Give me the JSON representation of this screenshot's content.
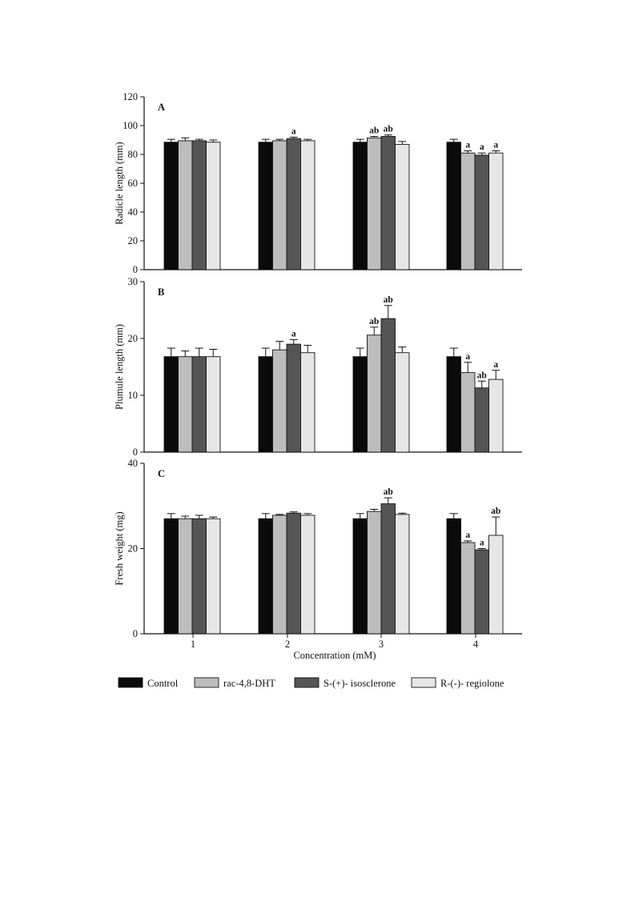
{
  "chart_data": [
    {
      "type": "bar",
      "panel_label": "A",
      "ylabel": "Radicle length  (mm)",
      "ylim": [
        0,
        120
      ],
      "yticks": [
        0,
        20,
        40,
        60,
        80,
        100,
        120
      ],
      "categories": [
        "1",
        "2",
        "3",
        "4"
      ],
      "series": [
        {
          "name": "Control",
          "values": [
            88.5,
            88.5,
            88.5,
            88.5
          ],
          "errors": [
            2,
            2,
            2,
            2
          ],
          "labels": [
            "",
            "",
            "",
            ""
          ]
        },
        {
          "name": "rac-4,8-DHT",
          "values": [
            89.5,
            89.5,
            91.5,
            81
          ],
          "errors": [
            2,
            1,
            1,
            1.5
          ],
          "labels": [
            "",
            "",
            "ab",
            "a"
          ]
        },
        {
          "name": "S-(+)- isosclerone",
          "values": [
            89.5,
            91,
            92.5,
            79.5
          ],
          "errors": [
            1,
            1,
            1,
            1.5
          ],
          "labels": [
            "",
            "a",
            "ab",
            "a"
          ]
        },
        {
          "name": "R-(-)- regiolone",
          "values": [
            88.5,
            89.5,
            87,
            81
          ],
          "errors": [
            1.5,
            1,
            2,
            1.5
          ],
          "labels": [
            "",
            "",
            "",
            "a"
          ]
        }
      ]
    },
    {
      "type": "bar",
      "panel_label": "B",
      "ylabel": "Plumule length (mm)",
      "ylim": [
        0,
        30
      ],
      "yticks": [
        0,
        10,
        20,
        30
      ],
      "categories": [
        "1",
        "2",
        "3",
        "4"
      ],
      "series": [
        {
          "name": "Control",
          "values": [
            16.8,
            16.8,
            16.8,
            16.8
          ],
          "errors": [
            1.5,
            1.5,
            1.5,
            1.5
          ],
          "labels": [
            "",
            "",
            "",
            ""
          ]
        },
        {
          "name": "rac-4,8-DHT",
          "values": [
            16.8,
            18,
            20.6,
            14
          ],
          "errors": [
            1,
            1.5,
            1.4,
            1.8
          ],
          "labels": [
            "",
            "",
            "ab",
            "a"
          ]
        },
        {
          "name": "S-(+)- isosclerone",
          "values": [
            16.8,
            19,
            23.5,
            11.3
          ],
          "errors": [
            1.5,
            0.8,
            2.3,
            1.2
          ],
          "labels": [
            "",
            "a",
            "ab",
            "ab"
          ]
        },
        {
          "name": "R-(-)- regiolone",
          "values": [
            16.8,
            17.5,
            17.5,
            12.8
          ],
          "errors": [
            1.3,
            1.3,
            1,
            1.6
          ],
          "labels": [
            "",
            "",
            "",
            "a"
          ]
        }
      ]
    },
    {
      "type": "bar",
      "panel_label": "C",
      "ylabel": "Fresh weight (mg)",
      "ylim": [
        0,
        40
      ],
      "yticks": [
        0,
        20,
        40
      ],
      "categories": [
        "1",
        "2",
        "3",
        "4"
      ],
      "series": [
        {
          "name": "Control",
          "values": [
            27,
            27,
            27,
            27
          ],
          "errors": [
            1.2,
            1.2,
            1.2,
            1.2
          ],
          "labels": [
            "",
            "",
            "",
            ""
          ]
        },
        {
          "name": "rac-4,8-DHT",
          "values": [
            27,
            27.8,
            28.7,
            21.4
          ],
          "errors": [
            0.6,
            0.2,
            0.5,
            0.4
          ],
          "labels": [
            "",
            "",
            "",
            "a"
          ]
        },
        {
          "name": "S-(+)- isosclerone",
          "values": [
            27,
            28.3,
            30.5,
            19.7
          ],
          "errors": [
            0.8,
            0.3,
            1.4,
            0.3
          ],
          "labels": [
            "",
            "",
            "ab",
            "a"
          ]
        },
        {
          "name": "R-(-)- regiolone",
          "values": [
            27,
            27.8,
            28,
            23.1
          ],
          "errors": [
            0.4,
            0.4,
            0.3,
            4.3
          ],
          "labels": [
            "",
            "",
            "",
            "ab"
          ]
        }
      ]
    }
  ],
  "xlabel": "Concentration (mM)",
  "legend": [
    {
      "name": "Control",
      "color": "#0a0a0a"
    },
    {
      "name": "rac-4,8-DHT",
      "color": "#bdbdbd"
    },
    {
      "name": "S-(+)- isosclerone",
      "color": "#555555"
    },
    {
      "name": "R-(-)- regiolone",
      "color": "#e6e6e6"
    }
  ],
  "legend_placement": "bottom",
  "grid": false
}
